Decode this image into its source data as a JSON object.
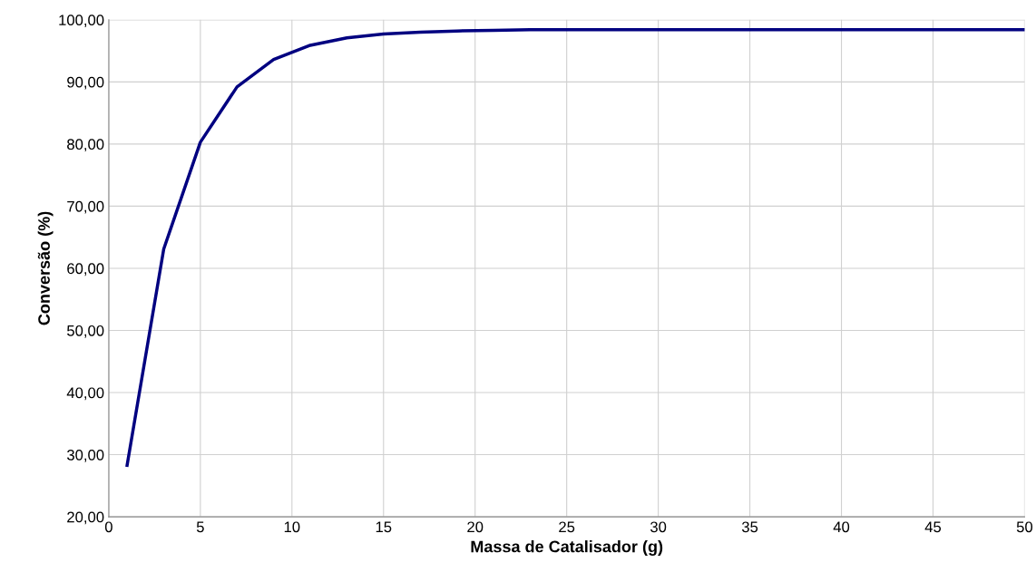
{
  "chart_data": {
    "type": "line",
    "xlabel": "Massa de Catalisador (g)",
    "ylabel": "Conversão (%)",
    "x": [
      1,
      3,
      5,
      7,
      9,
      11,
      13,
      15,
      17,
      19,
      21,
      23,
      25,
      27,
      29,
      31,
      33,
      35,
      37,
      39,
      41,
      43,
      45,
      47,
      49,
      50
    ],
    "series": [
      {
        "color": "#000080",
        "values": [
          28.3,
          63.1,
          80.3,
          89.2,
          93.6,
          95.9,
          97.1,
          97.7,
          98.0,
          98.2,
          98.3,
          98.4,
          98.4,
          98.4,
          98.4,
          98.4,
          98.4,
          98.4,
          98.4,
          98.4,
          98.4,
          98.4,
          98.4,
          98.4,
          98.4,
          98.4
        ]
      }
    ],
    "xlim": [
      0,
      50
    ],
    "xticks": [
      0,
      5,
      10,
      15,
      20,
      25,
      30,
      35,
      40,
      45,
      50
    ],
    "ylim": [
      20,
      100
    ],
    "yticks": [
      {
        "value": 20,
        "label": "20,00"
      },
      {
        "value": 30,
        "label": "30,00"
      },
      {
        "value": 40,
        "label": "40,00"
      },
      {
        "value": 50,
        "label": "50,00"
      },
      {
        "value": 60,
        "label": "60,00"
      },
      {
        "value": 70,
        "label": "70,00"
      },
      {
        "value": 80,
        "label": "80,00"
      },
      {
        "value": 90,
        "label": "90,00"
      },
      {
        "value": 100,
        "label": "100,00"
      }
    ],
    "grid": true,
    "marker": "none",
    "line_style": "solid",
    "legend": false
  }
}
